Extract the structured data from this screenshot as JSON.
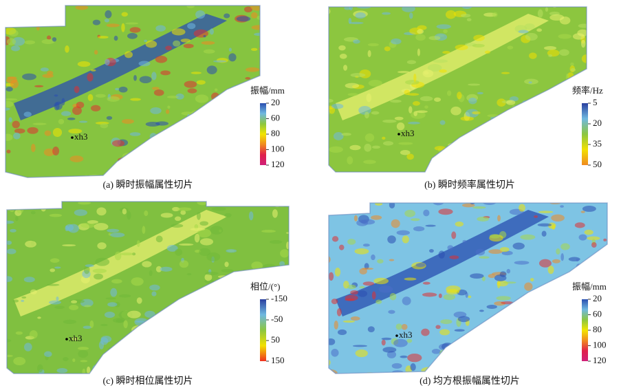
{
  "panels": [
    {
      "caption": "(a) 瞬时振幅属性切片",
      "well": "xh3",
      "colorbar": {
        "title": "振幅/mm",
        "ticks": [
          20,
          60,
          80,
          100,
          120
        ],
        "colormap": [
          "#2a4fb0",
          "#6fb8e0",
          "#8cc63f",
          "#f2e500",
          "#f08a20",
          "#e0204a",
          "#d0207a"
        ]
      }
    },
    {
      "caption": "(b) 瞬时频率属性切片",
      "well": "xh3",
      "colorbar": {
        "title": "频率/Hz",
        "ticks": [
          5,
          20,
          35,
          50
        ],
        "colormap": [
          "#2a3f9f",
          "#6fb8e0",
          "#8cc63f",
          "#f2e000",
          "#f08a20"
        ]
      }
    },
    {
      "caption": "(c) 瞬时相位属性切片",
      "well": "xh3",
      "colorbar": {
        "title": "相位/(°)",
        "ticks": [
          -150,
          -50,
          50,
          150
        ],
        "colormap": [
          "#2a3f9f",
          "#6fb8e0",
          "#8cc63f",
          "#f2e000",
          "#f03020"
        ]
      }
    },
    {
      "caption": "(d) 均方根振幅属性切片",
      "well": "xh3",
      "colorbar": {
        "title": "振幅/mm",
        "ticks": [
          20,
          60,
          80,
          100,
          120
        ],
        "colormap": [
          "#2a4fb0",
          "#6fb8e0",
          "#8cc63f",
          "#f2e500",
          "#f08a20",
          "#e0204a",
          "#d0207a"
        ]
      }
    }
  ]
}
